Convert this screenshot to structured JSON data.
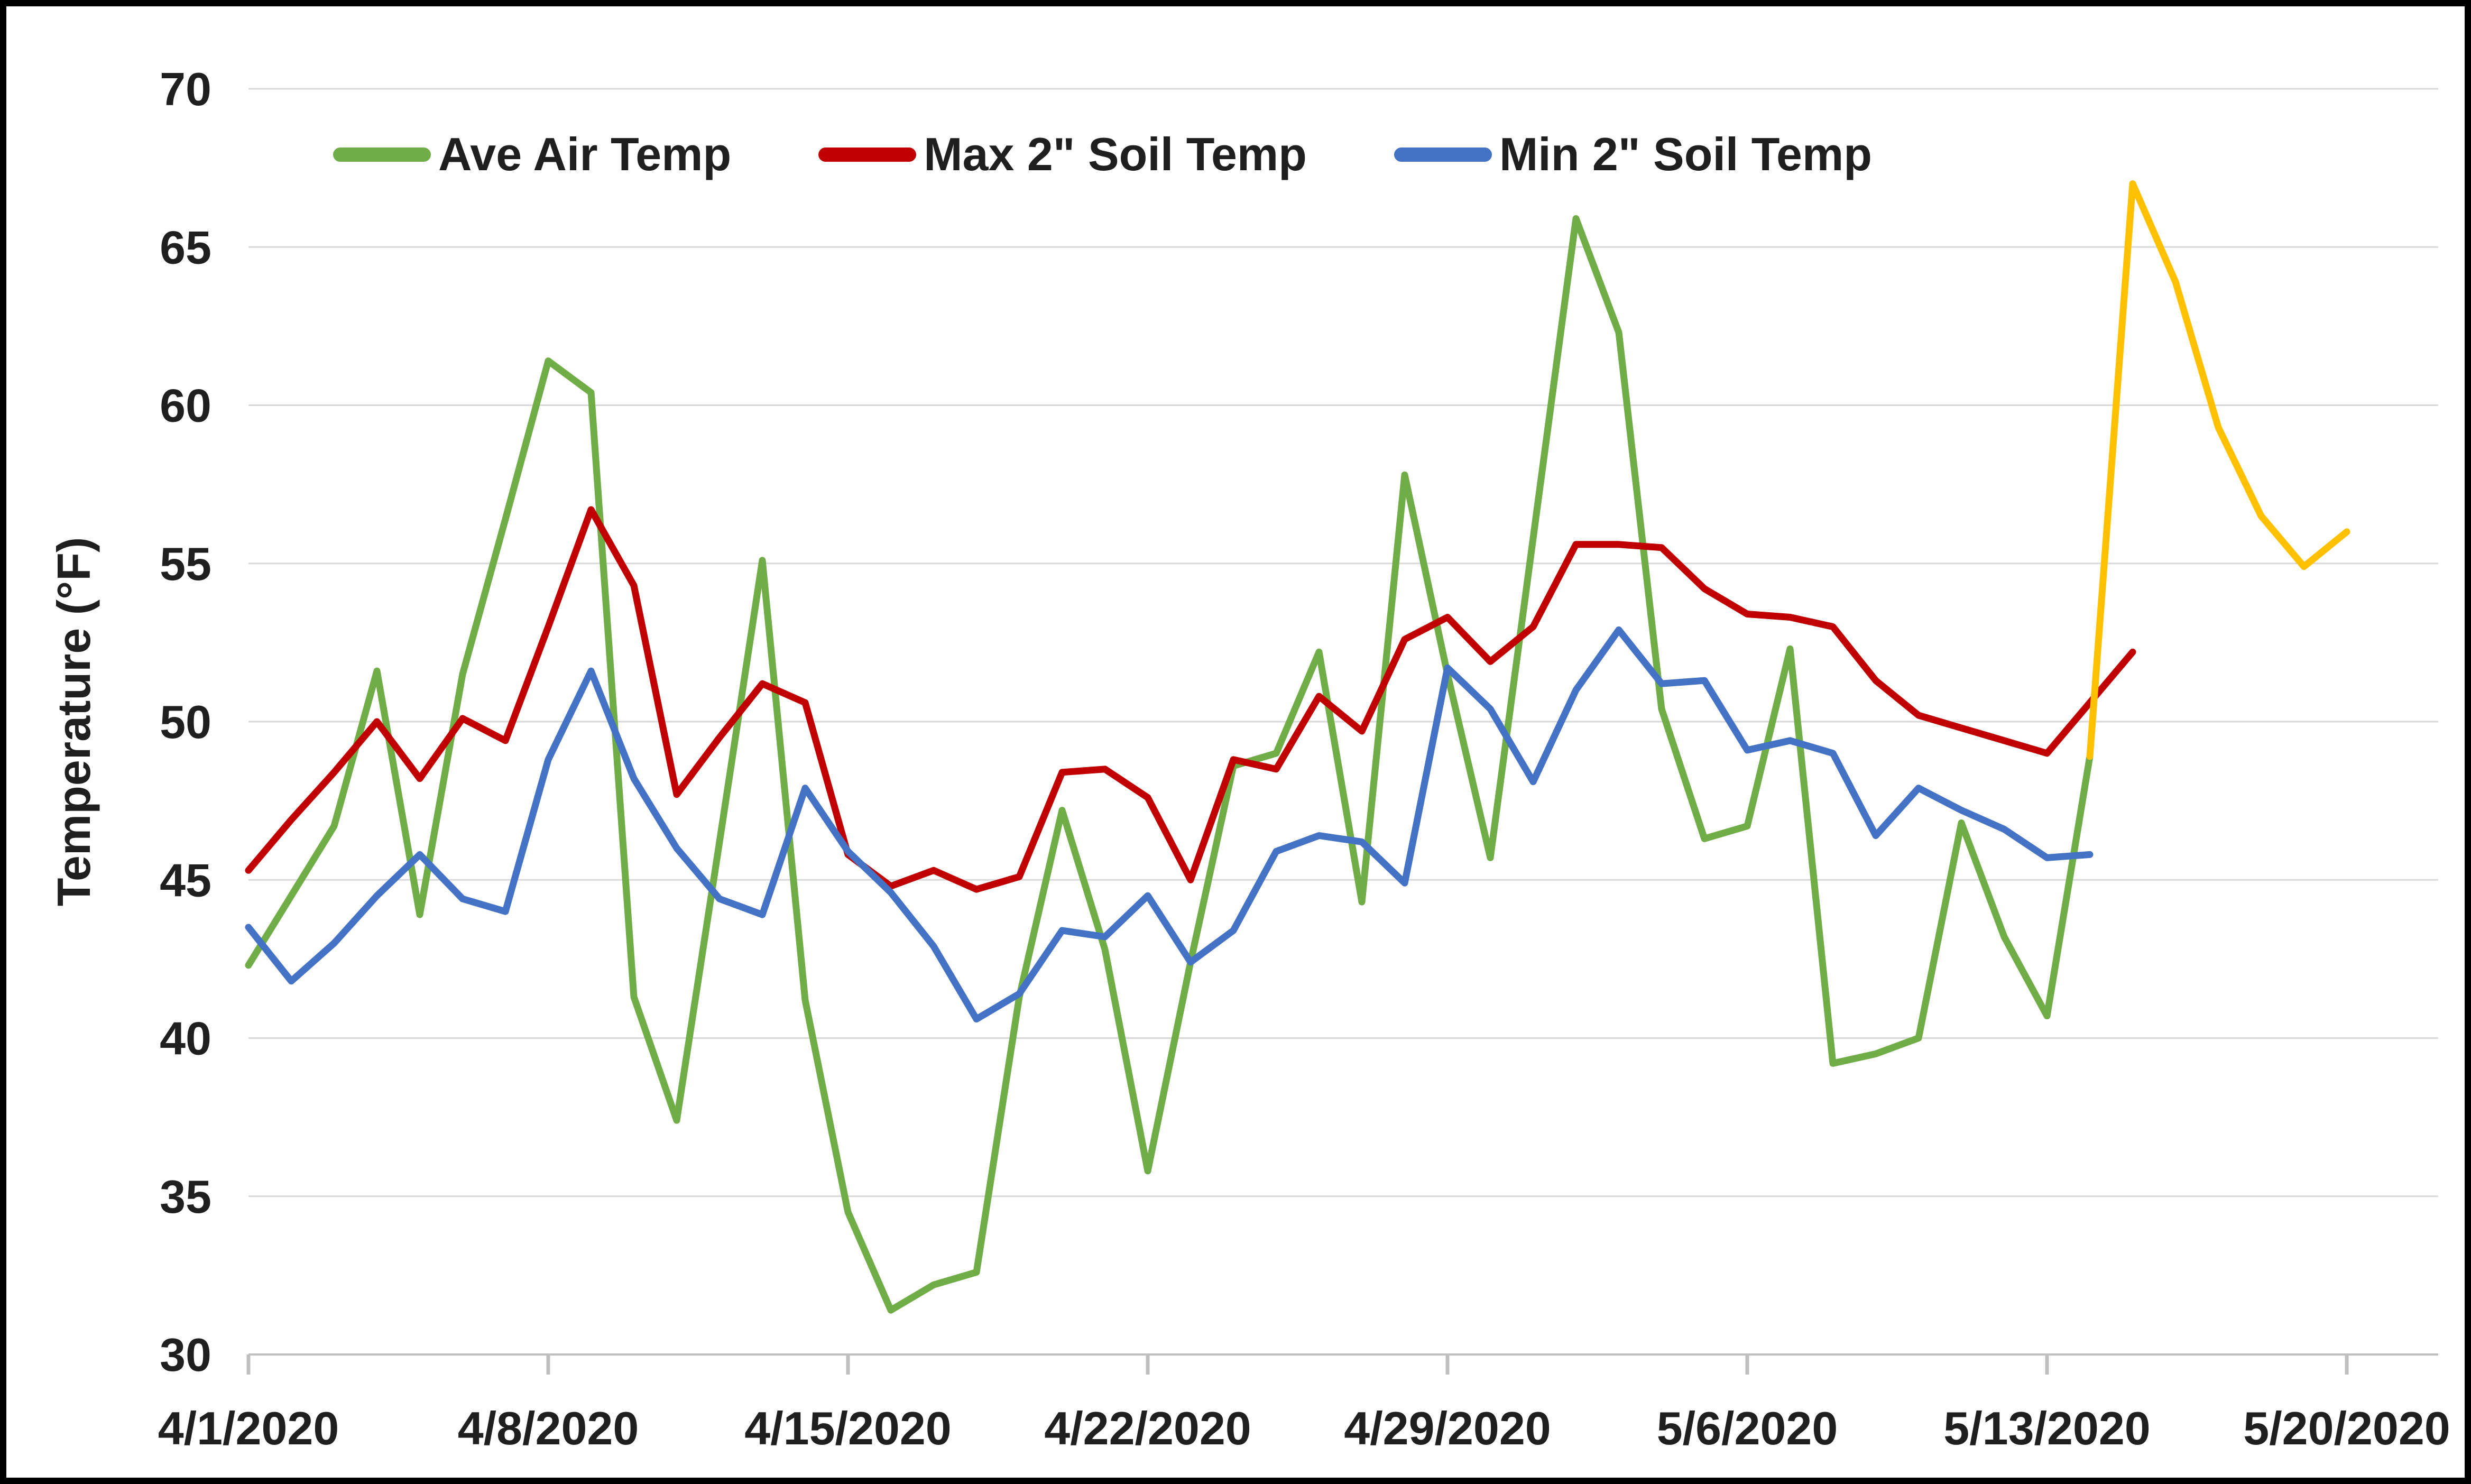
{
  "chart_data": {
    "type": "line",
    "title": "",
    "xlabel": "",
    "ylabel": "Temperature (°F)",
    "ylim": [
      30,
      70
    ],
    "y_ticks": [
      30,
      35,
      40,
      45,
      50,
      55,
      60,
      65,
      70
    ],
    "grid": "horizontal",
    "legend_position": "top",
    "categories": [
      "4/1/2020",
      "4/2/2020",
      "4/3/2020",
      "4/4/2020",
      "4/5/2020",
      "4/6/2020",
      "4/7/2020",
      "4/8/2020",
      "4/9/2020",
      "4/10/2020",
      "4/11/2020",
      "4/12/2020",
      "4/13/2020",
      "4/14/2020",
      "4/15/2020",
      "4/16/2020",
      "4/17/2020",
      "4/18/2020",
      "4/19/2020",
      "4/20/2020",
      "4/21/2020",
      "4/22/2020",
      "4/23/2020",
      "4/24/2020",
      "4/25/2020",
      "4/26/2020",
      "4/27/2020",
      "4/28/2020",
      "4/29/2020",
      "4/30/2020",
      "5/1/2020",
      "5/2/2020",
      "5/3/2020",
      "5/4/2020",
      "5/5/2020",
      "5/6/2020",
      "5/7/2020",
      "5/8/2020",
      "5/9/2020",
      "5/10/2020",
      "5/11/2020",
      "5/12/2020",
      "5/13/2020",
      "5/14/2020",
      "5/15/2020",
      "5/16/2020",
      "5/17/2020",
      "5/18/2020",
      "5/19/2020",
      "5/20/2020"
    ],
    "x_tick_labels": [
      "4/1/2020",
      "4/8/2020",
      "4/15/2020",
      "4/22/2020",
      "4/29/2020",
      "5/6/2020",
      "5/13/2020",
      "5/20/2020"
    ],
    "x_tick_indices": [
      0,
      7,
      14,
      21,
      28,
      35,
      42,
      49
    ],
    "series": [
      {
        "id": "ave-air-temp",
        "name": "Ave Air Temp",
        "color": "#70AD47",
        "in_legend": true,
        "start_index": 0,
        "values": [
          42.3,
          44.5,
          46.7,
          51.6,
          43.9,
          51.5,
          56.4,
          61.4,
          60.4,
          41.3,
          37.4,
          46.2,
          55.1,
          41.2,
          34.5,
          31.4,
          32.2,
          32.6,
          41.3,
          47.2,
          42.8,
          35.8,
          42.4,
          48.6,
          49.0,
          52.2,
          44.3,
          57.8,
          51.5,
          45.7,
          55.8,
          65.9,
          62.3,
          50.4,
          46.3,
          46.7,
          52.3,
          39.2,
          39.5,
          40.0,
          46.8,
          43.2,
          40.7,
          48.9
        ]
      },
      {
        "id": "max-2in-soil-temp",
        "name": "Max 2\" Soil Temp",
        "color": "#C00000",
        "in_legend": true,
        "start_index": 0,
        "values": [
          45.3,
          46.9,
          48.4,
          50.0,
          48.2,
          50.1,
          49.4,
          53.0,
          56.7,
          54.3,
          47.7,
          49.5,
          51.2,
          50.6,
          45.8,
          44.8,
          45.3,
          44.7,
          45.1,
          48.4,
          48.5,
          47.6,
          45.0,
          48.8,
          48.5,
          50.8,
          49.7,
          52.6,
          53.3,
          51.9,
          53.0,
          55.6,
          55.6,
          55.5,
          54.2,
          53.4,
          53.3,
          53.0,
          51.3,
          50.2,
          49.8,
          49.4,
          49.0,
          50.6,
          52.2
        ]
      },
      {
        "id": "min-2in-soil-temp",
        "name": "Min 2\" Soil Temp",
        "color": "#4472C4",
        "in_legend": true,
        "start_index": 0,
        "values": [
          43.5,
          41.8,
          43.0,
          44.5,
          45.8,
          44.4,
          44.0,
          48.8,
          51.6,
          48.2,
          46.0,
          44.4,
          43.9,
          47.9,
          45.9,
          44.6,
          42.9,
          40.6,
          41.4,
          43.4,
          43.2,
          44.5,
          42.4,
          43.4,
          45.9,
          46.4,
          46.2,
          44.9,
          51.7,
          50.4,
          48.1,
          51.0,
          52.9,
          51.2,
          51.3,
          49.1,
          49.4,
          49.0,
          46.4,
          47.9,
          47.2,
          46.6,
          45.7,
          45.8
        ]
      },
      {
        "id": "forecast-yellow",
        "name": "",
        "color": "#FFC000",
        "in_legend": false,
        "start_index": 43,
        "values": [
          48.9,
          67.0,
          63.9,
          59.3,
          56.5,
          54.9,
          56.0
        ]
      }
    ],
    "colors": {
      "background": "#FFFFFF",
      "border": "#000000",
      "gridline": "#D9D9D9",
      "axis_line": "#BFBFBF",
      "text": "#1F1F1F"
    }
  },
  "legend": {
    "items": [
      {
        "label": "Ave Air Temp"
      },
      {
        "label": "Max 2\" Soil Temp"
      },
      {
        "label": "Min 2\" Soil Temp"
      }
    ]
  }
}
